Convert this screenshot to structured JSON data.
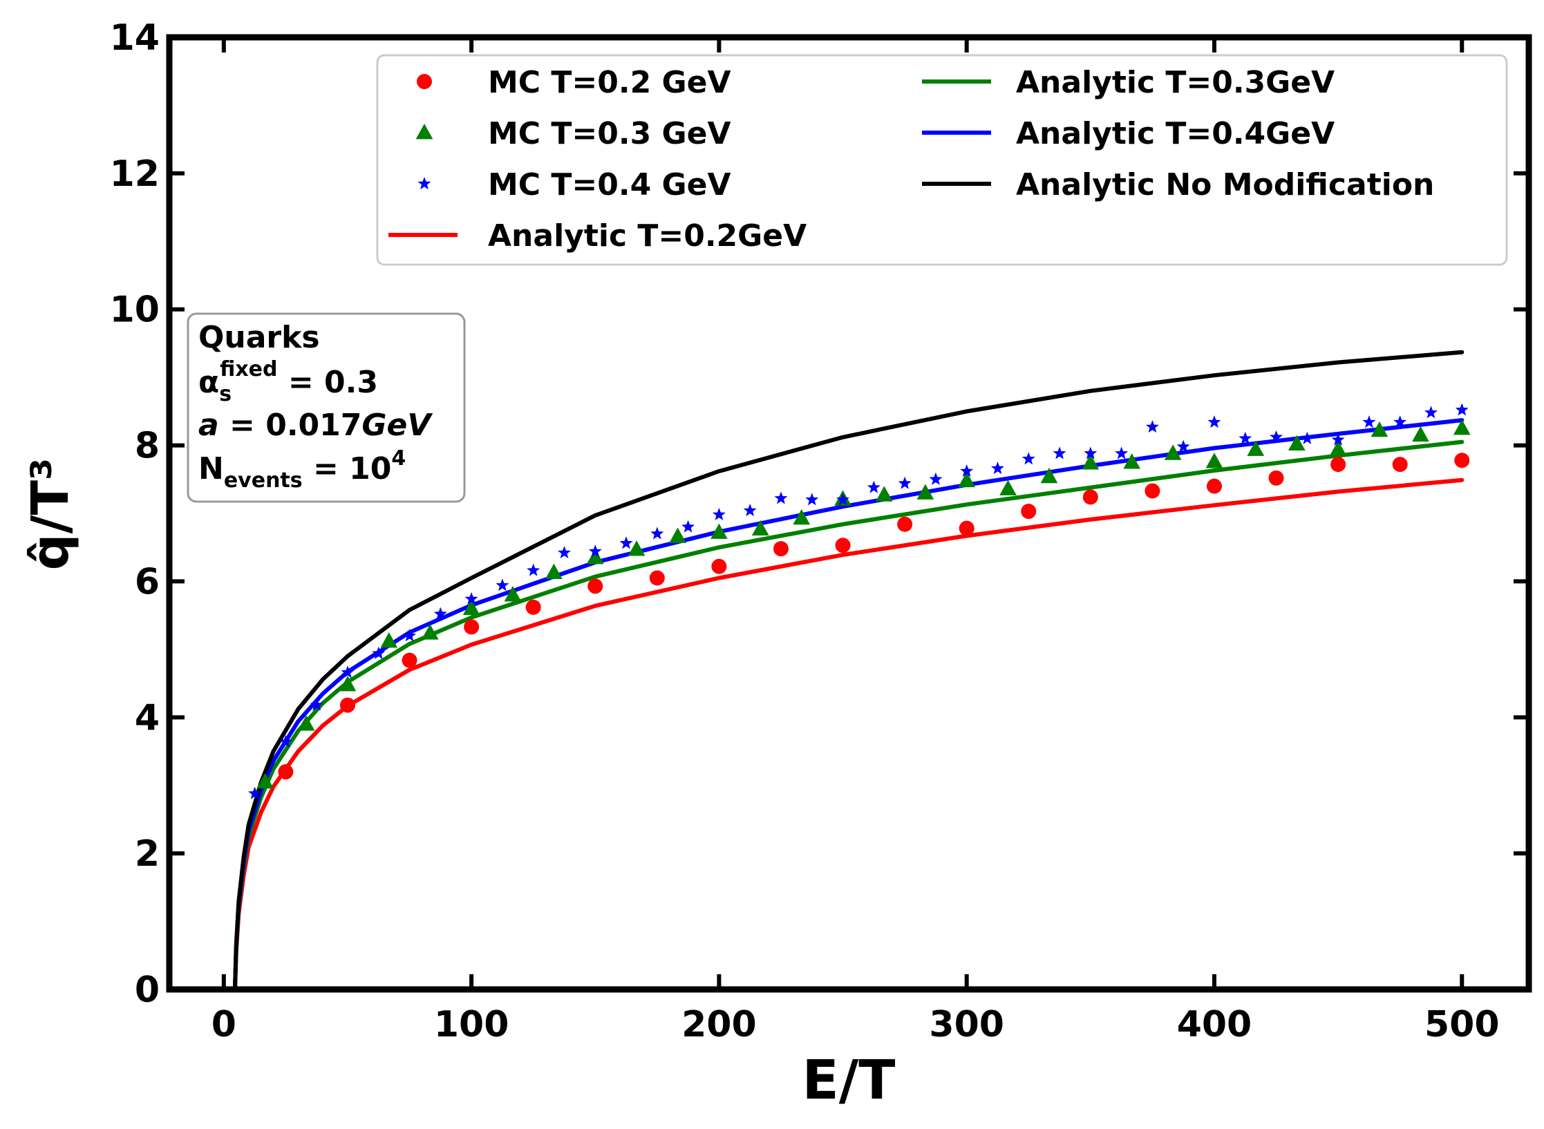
{
  "chart_data": {
    "type": "scatter+line",
    "title": "",
    "xlabel": "E/T",
    "ylabel": "q̂/T³",
    "xlim": [
      -22,
      527
    ],
    "ylim": [
      0,
      14
    ],
    "xticks": [
      0,
      100,
      200,
      300,
      400,
      500
    ],
    "yticks": [
      0,
      2,
      4,
      6,
      8,
      10,
      12,
      14
    ],
    "grid": false,
    "legend_position": "top-right",
    "legend": [
      {
        "label": "MC T=0.2 GeV",
        "kind": "marker",
        "marker": "circle",
        "color": "#ff0000"
      },
      {
        "label": "MC T=0.3 GeV",
        "kind": "marker",
        "marker": "triangle",
        "color": "#008000"
      },
      {
        "label": "MC T=0.4 GeV",
        "kind": "marker",
        "marker": "star",
        "color": "#0000ff"
      },
      {
        "label": "Analytic T=0.2GeV",
        "kind": "line",
        "color": "#ff0000"
      },
      {
        "label": "Analytic T=0.3GeV",
        "kind": "line",
        "color": "#008000"
      },
      {
        "label": "Analytic T=0.4GeV",
        "kind": "line",
        "color": "#0000ff"
      },
      {
        "label": "Analytic No Modification",
        "kind": "line",
        "color": "#000000"
      }
    ],
    "info_box": {
      "line1": "Quarks",
      "alpha_symbol": "α",
      "alpha_sub": "s",
      "alpha_sup": "fixed",
      "alpha_value": " = 0.3",
      "a_symbol": "a",
      "a_value": " = 0.017",
      "a_unit": "GeV",
      "n_symbol": "N",
      "n_sub": "events",
      "n_value": " = 10",
      "n_sup": "4"
    },
    "line_series": [
      {
        "name": "Analytic T=0.2GeV",
        "color": "#ff0000",
        "x": [
          4.5,
          5,
          6,
          8,
          10,
          15,
          20,
          30,
          40,
          50,
          75,
          100,
          150,
          200,
          250,
          300,
          350,
          400,
          450,
          500
        ],
        "y": [
          0.0,
          0.55,
          1.11,
          1.67,
          2.09,
          2.6,
          2.98,
          3.5,
          3.88,
          4.17,
          4.7,
          5.07,
          5.64,
          6.05,
          6.39,
          6.67,
          6.91,
          7.12,
          7.32,
          7.49
        ]
      },
      {
        "name": "Analytic T=0.3GeV",
        "color": "#008000",
        "x": [
          4.5,
          5,
          6,
          8,
          10,
          15,
          20,
          30,
          40,
          50,
          75,
          100,
          150,
          200,
          250,
          300,
          350,
          400,
          450,
          500
        ],
        "y": [
          0.0,
          0.6,
          1.2,
          1.8,
          2.25,
          2.82,
          3.24,
          3.8,
          4.21,
          4.52,
          5.08,
          5.47,
          6.07,
          6.5,
          6.84,
          7.13,
          7.38,
          7.63,
          7.85,
          8.05
        ]
      },
      {
        "name": "Analytic T=0.4GeV",
        "color": "#0000ff",
        "x": [
          4.5,
          5,
          6,
          8,
          10,
          15,
          20,
          30,
          40,
          50,
          75,
          100,
          150,
          200,
          250,
          300,
          350,
          400,
          450,
          500
        ],
        "y": [
          0.0,
          0.62,
          1.24,
          1.86,
          2.33,
          2.92,
          3.36,
          3.94,
          4.35,
          4.67,
          5.25,
          5.65,
          6.28,
          6.73,
          7.1,
          7.42,
          7.7,
          7.96,
          8.17,
          8.37
        ]
      },
      {
        "name": "Analytic No Modification",
        "color": "#000000",
        "x": [
          4.5,
          5,
          6,
          8,
          10,
          15,
          20,
          30,
          40,
          50,
          75,
          100,
          150,
          200,
          250,
          300,
          350,
          400,
          450,
          500
        ],
        "y": [
          0.0,
          0.65,
          1.29,
          1.94,
          2.42,
          3.04,
          3.5,
          4.12,
          4.56,
          4.9,
          5.58,
          6.05,
          6.97,
          7.62,
          8.12,
          8.5,
          8.8,
          9.03,
          9.22,
          9.37
        ]
      }
    ],
    "marker_series": [
      {
        "name": "MC T=0.2 GeV",
        "marker": "circle",
        "color": "#ff0000",
        "x": [
          25,
          50,
          75,
          100,
          125,
          150,
          175,
          200,
          225,
          250,
          275,
          300,
          325,
          350,
          375,
          400,
          425,
          450,
          475,
          500
        ],
        "y": [
          3.2,
          4.18,
          4.84,
          5.33,
          5.62,
          5.93,
          6.05,
          6.22,
          6.48,
          6.53,
          6.84,
          6.78,
          7.03,
          7.24,
          7.33,
          7.4,
          7.52,
          7.72,
          7.72,
          7.78
        ]
      },
      {
        "name": "MC T=0.3 GeV",
        "marker": "triangle",
        "color": "#008000",
        "x": [
          16.7,
          33.3,
          50,
          66.7,
          83.3,
          100,
          116.7,
          133.3,
          150,
          166.7,
          183.3,
          200,
          216.7,
          233.3,
          250,
          266.7,
          283.3,
          300,
          316.7,
          333.3,
          350,
          366.7,
          383.3,
          400,
          416.7,
          433.3,
          450,
          466.7,
          483.3,
          500
        ],
        "y": [
          3.05,
          3.9,
          4.48,
          5.12,
          5.24,
          5.6,
          5.8,
          6.13,
          6.35,
          6.47,
          6.66,
          6.72,
          6.77,
          6.93,
          7.21,
          7.27,
          7.3,
          7.48,
          7.36,
          7.54,
          7.74,
          7.75,
          7.88,
          7.76,
          7.94,
          8.02,
          7.94,
          8.22,
          8.15,
          8.25
        ]
      },
      {
        "name": "MC T=0.4 GeV",
        "marker": "star",
        "color": "#0000ff",
        "x": [
          12.5,
          25,
          37.5,
          50,
          62.5,
          75,
          87.5,
          100,
          112.5,
          125,
          137.5,
          150,
          162.5,
          175,
          187.5,
          200,
          212.5,
          225,
          237.5,
          250,
          262.5,
          275,
          287.5,
          300,
          312.5,
          325,
          337.5,
          350,
          362.5,
          375,
          387.5,
          400,
          412.5,
          425,
          437.5,
          450,
          462.5,
          475,
          487.5,
          500
        ],
        "y": [
          2.88,
          3.64,
          4.18,
          4.66,
          4.94,
          5.2,
          5.52,
          5.74,
          5.94,
          6.16,
          6.42,
          6.44,
          6.56,
          6.7,
          6.8,
          6.98,
          7.04,
          7.22,
          7.2,
          7.2,
          7.38,
          7.44,
          7.5,
          7.62,
          7.66,
          7.8,
          7.88,
          7.88,
          7.88,
          8.27,
          7.98,
          8.34,
          8.1,
          8.12,
          8.1,
          8.08,
          8.34,
          8.34,
          8.48,
          8.52
        ]
      }
    ]
  }
}
